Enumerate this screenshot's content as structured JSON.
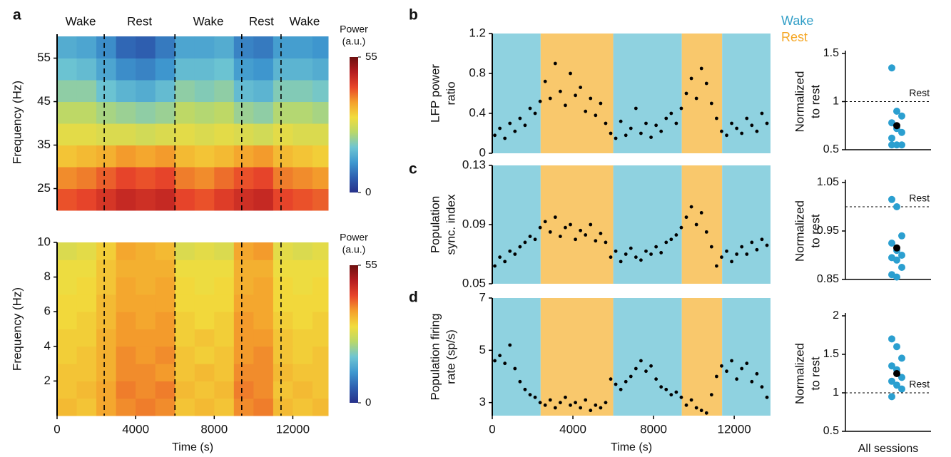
{
  "chart_data": [
    {
      "type": "heatmap",
      "panel": "a",
      "ylabel": [
        "Frequency (Hz)"
      ],
      "x": [
        500,
        1500,
        2500,
        3500,
        4500,
        5500,
        6500,
        7500,
        8500,
        9500,
        10500,
        11500,
        12500,
        13500
      ],
      "y": [
        22.5,
        27.5,
        32.5,
        37.5,
        42.5,
        47.5,
        52.5,
        57.5
      ],
      "z": [
        [
          42,
          43,
          45,
          47,
          46,
          47,
          43,
          42,
          44,
          46,
          47,
          43,
          42,
          41
        ],
        [
          38,
          39,
          41,
          43,
          42,
          43,
          39,
          38,
          40,
          42,
          43,
          39,
          38,
          37
        ],
        [
          33,
          34,
          35,
          37,
          36,
          37,
          34,
          33,
          34,
          36,
          37,
          34,
          33,
          32
        ],
        [
          29,
          29,
          28,
          28,
          27,
          28,
          29,
          28,
          29,
          28,
          27,
          29,
          28,
          28
        ],
        [
          25,
          25,
          23,
          22,
          21,
          22,
          25,
          24,
          25,
          22,
          21,
          24,
          24,
          23
        ],
        [
          21,
          21,
          18,
          16,
          15,
          17,
          21,
          20,
          21,
          17,
          16,
          20,
          20,
          19
        ],
        [
          18,
          17,
          14,
          11,
          10,
          12,
          17,
          17,
          18,
          13,
          12,
          16,
          16,
          15
        ],
        [
          15,
          14,
          11,
          7,
          6,
          9,
          14,
          14,
          15,
          10,
          9,
          13,
          13,
          12
        ]
      ],
      "xlim": [
        0,
        13800
      ],
      "ylim": [
        20,
        60.5
      ],
      "yticks": [
        25,
        35,
        45,
        55
      ],
      "colorbar": {
        "label": [
          "Power",
          "(a.u.)"
        ],
        "clim": [
          0,
          55
        ],
        "ticks": [
          0,
          55
        ],
        "colors": [
          "#27318a",
          "#2e5fb0",
          "#3f98cf",
          "#6ec5d2",
          "#b9d86a",
          "#f2dc3c",
          "#f4a02c",
          "#e8452a",
          "#b51d20",
          "#6e1010"
        ]
      },
      "periods": [
        {
          "label": "Wake",
          "start": 0,
          "end": 2400
        },
        {
          "label": "Rest",
          "start": 2400,
          "end": 6000
        },
        {
          "label": "Wake",
          "start": 6000,
          "end": 9400
        },
        {
          "label": "Rest",
          "start": 9400,
          "end": 11400
        },
        {
          "label": "Wake",
          "start": 11400,
          "end": 13800
        }
      ]
    },
    {
      "type": "heatmap",
      "ylabel": [
        "Frequency (Hz)"
      ],
      "xlabel": "Time (s)",
      "x": [
        500,
        1500,
        2500,
        3500,
        4500,
        5500,
        6500,
        7500,
        8500,
        9500,
        10500,
        11500,
        12500,
        13500
      ],
      "y": [
        0.5,
        1.5,
        2.5,
        3.5,
        4.5,
        5.5,
        6.5,
        7.5,
        8.5,
        9.5
      ],
      "z": [
        [
          34,
          33,
          36,
          38,
          39,
          38,
          33,
          34,
          33,
          38,
          39,
          34,
          33,
          34
        ],
        [
          33,
          34,
          36,
          39,
          38,
          39,
          34,
          33,
          34,
          39,
          38,
          33,
          34,
          33
        ],
        [
          33,
          33,
          35,
          38,
          38,
          37,
          33,
          34,
          33,
          38,
          38,
          34,
          33,
          33
        ],
        [
          32,
          33,
          35,
          38,
          37,
          38,
          33,
          32,
          33,
          37,
          38,
          33,
          32,
          33
        ],
        [
          32,
          32,
          35,
          37,
          37,
          37,
          32,
          33,
          32,
          37,
          37,
          33,
          32,
          32
        ],
        [
          31,
          32,
          34,
          37,
          36,
          37,
          32,
          31,
          32,
          37,
          36,
          32,
          31,
          32
        ],
        [
          31,
          31,
          34,
          36,
          36,
          36,
          31,
          31,
          31,
          36,
          36,
          31,
          31,
          31
        ],
        [
          30,
          31,
          33,
          36,
          35,
          36,
          31,
          30,
          31,
          35,
          36,
          31,
          30,
          31
        ],
        [
          30,
          30,
          33,
          35,
          35,
          35,
          30,
          30,
          30,
          35,
          35,
          30,
          30,
          30
        ],
        [
          28,
          29,
          32,
          36,
          35,
          34,
          28,
          29,
          28,
          36,
          37,
          29,
          28,
          29
        ]
      ],
      "xlim": [
        0,
        13800
      ],
      "ylim": [
        0,
        10
      ],
      "yticks": [
        2,
        4,
        6,
        8,
        10
      ],
      "xticks": [
        0,
        4000,
        8000,
        12000
      ],
      "colorbar": {
        "label": [
          "Power",
          "(a.u.)"
        ],
        "clim": [
          0,
          55
        ],
        "ticks": [
          0,
          55
        ],
        "colors": [
          "#27318a",
          "#2e5fb0",
          "#3f98cf",
          "#6ec5d2",
          "#b9d86a",
          "#f2dc3c",
          "#f4a02c",
          "#e8452a",
          "#b51d20",
          "#6e1010"
        ]
      }
    },
    {
      "type": "scatter",
      "panel": "b",
      "ylabel": [
        "LFP power",
        "ratio"
      ],
      "color": "#000000",
      "legend": [
        {
          "name": "Wake",
          "color": "#35a0c8"
        },
        {
          "name": "Rest",
          "color": "#f5a623"
        }
      ],
      "shading": {
        "Wake": "#8fd2e0",
        "Rest": "#f9c86c"
      },
      "x": [
        125,
        375,
        625,
        875,
        1125,
        1375,
        1625,
        1875,
        2125,
        2375,
        2625,
        2875,
        3125,
        3375,
        3625,
        3875,
        4125,
        4375,
        4625,
        4875,
        5125,
        5375,
        5625,
        5875,
        6125,
        6375,
        6625,
        6875,
        7125,
        7375,
        7625,
        7875,
        8125,
        8375,
        8625,
        8875,
        9125,
        9375,
        9625,
        9875,
        10125,
        10375,
        10625,
        10875,
        11125,
        11375,
        11625,
        11875,
        12125,
        12375,
        12625,
        12875,
        13125,
        13375,
        13625
      ],
      "values": [
        0.18,
        0.25,
        0.15,
        0.3,
        0.22,
        0.35,
        0.28,
        0.45,
        0.4,
        0.52,
        0.72,
        0.55,
        0.9,
        0.62,
        0.48,
        0.8,
        0.58,
        0.66,
        0.42,
        0.55,
        0.38,
        0.5,
        0.3,
        0.2,
        0.15,
        0.32,
        0.18,
        0.25,
        0.45,
        0.2,
        0.3,
        0.16,
        0.28,
        0.22,
        0.35,
        0.4,
        0.3,
        0.45,
        0.6,
        0.75,
        0.55,
        0.85,
        0.7,
        0.5,
        0.35,
        0.22,
        0.18,
        0.3,
        0.25,
        0.2,
        0.35,
        0.28,
        0.22,
        0.4,
        0.3
      ],
      "xlim": [
        0,
        13800
      ],
      "ylim": [
        0,
        1.2
      ],
      "yticks": [
        0,
        0.4,
        0.8,
        1.2
      ]
    },
    {
      "type": "strip",
      "ylabel": [
        "Normalized",
        "to rest"
      ],
      "color": "#2b9fd0",
      "mean_color": "#000000",
      "values": [
        1.35,
        0.9,
        0.85,
        0.78,
        0.72,
        0.68,
        0.62,
        0.55,
        0.55,
        0.55
      ],
      "mean": 0.75,
      "ref": {
        "value": 1,
        "label": "Rest"
      },
      "ylim": [
        0.5,
        1.5
      ],
      "yticks": [
        0.5,
        1,
        1.5
      ]
    },
    {
      "type": "scatter",
      "panel": "c",
      "ylabel": [
        "Population",
        "sync. index"
      ],
      "color": "#000000",
      "x": [
        125,
        375,
        625,
        875,
        1125,
        1375,
        1625,
        1875,
        2125,
        2375,
        2625,
        2875,
        3125,
        3375,
        3625,
        3875,
        4125,
        4375,
        4625,
        4875,
        5125,
        5375,
        5625,
        5875,
        6125,
        6375,
        6625,
        6875,
        7125,
        7375,
        7625,
        7875,
        8125,
        8375,
        8625,
        8875,
        9125,
        9375,
        9625,
        9875,
        10125,
        10375,
        10625,
        10875,
        11125,
        11375,
        11625,
        11875,
        12125,
        12375,
        12625,
        12875,
        13125,
        13375,
        13625
      ],
      "values": [
        0.062,
        0.068,
        0.065,
        0.072,
        0.07,
        0.075,
        0.078,
        0.082,
        0.08,
        0.088,
        0.092,
        0.085,
        0.095,
        0.082,
        0.088,
        0.09,
        0.08,
        0.086,
        0.083,
        0.09,
        0.079,
        0.084,
        0.078,
        0.068,
        0.072,
        0.065,
        0.07,
        0.074,
        0.068,
        0.066,
        0.072,
        0.07,
        0.075,
        0.071,
        0.078,
        0.08,
        0.083,
        0.088,
        0.095,
        0.102,
        0.09,
        0.098,
        0.085,
        0.075,
        0.062,
        0.068,
        0.072,
        0.065,
        0.07,
        0.075,
        0.07,
        0.078,
        0.073,
        0.08,
        0.076
      ],
      "xlim": [
        0,
        13800
      ],
      "ylim": [
        0.05,
        0.13
      ],
      "yticks": [
        0.05,
        0.09,
        0.13
      ]
    },
    {
      "type": "strip",
      "ylabel": [
        "Normalized",
        "to rest"
      ],
      "color": "#2b9fd0",
      "mean_color": "#000000",
      "values": [
        1.015,
        1.0,
        0.94,
        0.925,
        0.91,
        0.9,
        0.895,
        0.89,
        0.875,
        0.86,
        0.855
      ],
      "mean": 0.915,
      "ref": {
        "value": 1,
        "label": "Rest"
      },
      "ylim": [
        0.85,
        1.05
      ],
      "yticks": [
        0.85,
        0.95,
        1.05
      ]
    },
    {
      "type": "scatter",
      "panel": "d",
      "ylabel": [
        "Population firing",
        "rate (sp/s)"
      ],
      "xlabel": "Time (s)",
      "color": "#000000",
      "x": [
        125,
        375,
        625,
        875,
        1125,
        1375,
        1625,
        1875,
        2125,
        2375,
        2625,
        2875,
        3125,
        3375,
        3625,
        3875,
        4125,
        4375,
        4625,
        4875,
        5125,
        5375,
        5625,
        5875,
        6125,
        6375,
        6625,
        6875,
        7125,
        7375,
        7625,
        7875,
        8125,
        8375,
        8625,
        8875,
        9125,
        9375,
        9625,
        9875,
        10125,
        10375,
        10625,
        10875,
        11125,
        11375,
        11625,
        11875,
        12125,
        12375,
        12625,
        12875,
        13125,
        13375,
        13625
      ],
      "values": [
        4.6,
        4.8,
        4.5,
        5.2,
        4.3,
        3.8,
        3.5,
        3.3,
        3.2,
        3.0,
        2.9,
        3.1,
        2.8,
        3.0,
        3.2,
        2.9,
        3.0,
        2.8,
        3.1,
        2.7,
        2.9,
        2.8,
        3.0,
        3.9,
        3.7,
        3.5,
        3.8,
        4.0,
        4.3,
        4.6,
        4.2,
        4.4,
        3.9,
        3.6,
        3.5,
        3.3,
        3.4,
        3.2,
        2.9,
        3.1,
        2.8,
        2.7,
        2.6,
        3.3,
        4.0,
        4.4,
        4.2,
        4.6,
        3.9,
        4.3,
        4.5,
        3.8,
        4.1,
        3.6,
        3.2
      ],
      "xlim": [
        0,
        13800
      ],
      "ylim": [
        2.5,
        7
      ],
      "yticks": [
        3,
        5,
        7
      ],
      "xticks": [
        0,
        4000,
        8000,
        12000
      ]
    },
    {
      "type": "strip",
      "ylabel": [
        "Normalized",
        "to rest"
      ],
      "xlabel": "All sessions",
      "color": "#2b9fd0",
      "mean_color": "#000000",
      "values": [
        1.7,
        1.6,
        1.45,
        1.35,
        1.3,
        1.2,
        1.15,
        1.1,
        1.05,
        0.95
      ],
      "mean": 1.25,
      "ref": {
        "value": 1,
        "label": "Rest"
      },
      "ylim": [
        0.5,
        2
      ],
      "yticks": [
        0.5,
        1,
        1.5,
        2
      ]
    }
  ]
}
